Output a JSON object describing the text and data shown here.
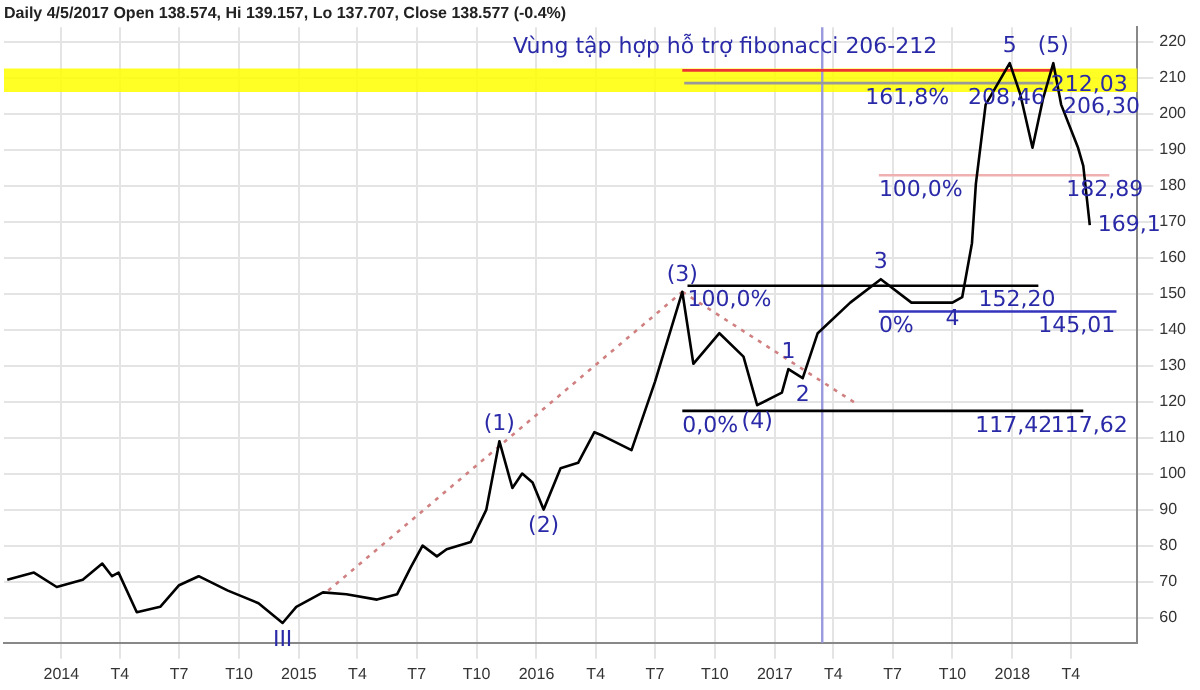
{
  "chart_data": {
    "type": "line",
    "title": "Daily 4/5/2017 Open 138.574, Hi 139.157, Lo 137.707, Close 138.577 (-0.4%)",
    "xlim": [
      "2013-10-05",
      "2018-07-12"
    ],
    "xticks": [
      {
        "value": "2014",
        "label": "2014"
      },
      {
        "value": "2014-04",
        "label": "T4"
      },
      {
        "value": "2014-07",
        "label": "T7"
      },
      {
        "value": "2014-10",
        "label": "T10"
      },
      {
        "value": "2015",
        "label": "2015"
      },
      {
        "value": "2015-04",
        "label": "T4"
      },
      {
        "value": "2015-07",
        "label": "T7"
      },
      {
        "value": "2015-10",
        "label": "T10"
      },
      {
        "value": "2016",
        "label": "2016"
      },
      {
        "value": "2016-04",
        "label": "T4"
      },
      {
        "value": "2016-07",
        "label": "T7"
      },
      {
        "value": "2016-10",
        "label": "T10"
      },
      {
        "value": "2017",
        "label": "2017"
      },
      {
        "value": "2017-04",
        "label": "T4"
      },
      {
        "value": "2017-07",
        "label": "T7"
      },
      {
        "value": "2017-10",
        "label": "T10"
      },
      {
        "value": "2018",
        "label": "2018"
      },
      {
        "value": "2018-04",
        "label": "T4"
      }
    ],
    "ylim": [
      53,
      224
    ],
    "yticks": [
      60,
      70,
      80,
      90,
      100,
      110,
      120,
      130,
      140,
      150,
      160,
      170,
      180,
      190,
      200,
      210,
      220
    ],
    "grid": true,
    "legend": false,
    "marker": "none",
    "series": [
      {
        "color": "#000000",
        "x": [
          "2013-10-10",
          "2013-11-20",
          "2013-12-25",
          "2014-02-03",
          "2014-03-05",
          "2014-03-20",
          "2014-03-30",
          "2014-04-27",
          "2014-06-02",
          "2014-07-01",
          "2014-07-31",
          "2014-09-14",
          "2014-10-31",
          "2014-12-07",
          "2014-12-28",
          "2015-02-07",
          "2015-03-15",
          "2015-05-01",
          "2015-06-01",
          "2015-06-22",
          "2015-07-10",
          "2015-08-01",
          "2015-08-16",
          "2015-09-22",
          "2015-10-16",
          "2015-11-05",
          "2015-11-25",
          "2015-12-10",
          "2015-12-26",
          "2016-01-12",
          "2016-02-07",
          "2016-03-05",
          "2016-03-30",
          "2016-04-12",
          "2016-05-26",
          "2016-07-01",
          "2016-08-12",
          "2016-08-29",
          "2016-10-08",
          "2016-11-14",
          "2016-12-05",
          "2017-01-12",
          "2017-01-22",
          "2017-02-13",
          "2017-03-08",
          "2017-04-27",
          "2017-06-13",
          "2017-07-30",
          "2017-10-01",
          "2017-10-16",
          "2017-10-31",
          "2017-11-06",
          "2017-11-21",
          "2017-12-28",
          "2018-01-13",
          "2018-02-01",
          "2018-02-17",
          "2018-03-05",
          "2018-03-17",
          "2018-04-12",
          "2018-04-20",
          "2018-04-30"
        ],
        "values": [
          70.5,
          72.5,
          68.5,
          70.5,
          75,
          71.5,
          72.5,
          61.5,
          63,
          69,
          71.5,
          67.5,
          64,
          58.5,
          63,
          67,
          66.5,
          65,
          66.5,
          74,
          80,
          77,
          79,
          81,
          90,
          109,
          96,
          100,
          97.5,
          90,
          101.5,
          103,
          111.5,
          110.5,
          106.5,
          125.5,
          150.5,
          130.5,
          139,
          132.5,
          119,
          122.5,
          129,
          126.5,
          139,
          147.5,
          154,
          147.5,
          147.5,
          149,
          164,
          180.5,
          202.5,
          214,
          205.5,
          190.5,
          204,
          214,
          202.5,
          190.5,
          185.5,
          169
        ]
      },
      {
        "color": "#000000",
        "x": [
          "2016-08-20",
          "2018-02-10"
        ],
        "values": [
          152.2,
          152.2
        ]
      },
      {
        "color": "#3333bb",
        "x": [
          "2017-06-10",
          "2018-06-10"
        ],
        "values": [
          145.01,
          145.01
        ]
      },
      {
        "color": "#000000",
        "x": [
          "2016-08-12",
          "2018-04-20"
        ],
        "values": [
          117.42,
          117.42
        ]
      },
      {
        "color": "#ee3333",
        "x": [
          "2016-08-12",
          "2018-03-05"
        ],
        "values": [
          212,
          212
        ]
      },
      {
        "color": "#999999",
        "x": [
          "2016-08-15",
          "2018-03-05"
        ],
        "values": [
          208.46,
          208.46
        ]
      },
      {
        "color": "#f0b0b0",
        "x": [
          "2017-06-10",
          "2018-05-30"
        ],
        "values": [
          182.89,
          182.89
        ]
      },
      {
        "color": "#d08080",
        "line_style": "dotted",
        "x": [
          "2015-02-15",
          "2016-08-12"
        ],
        "values": [
          67.5,
          150.5
        ]
      },
      {
        "color": "#d08080",
        "line_style": "dotted",
        "x": [
          "2016-08-12",
          "2017-05-10"
        ],
        "values": [
          150.5,
          119
        ]
      }
    ],
    "ref_lines": [
      {
        "axis": "x",
        "value": "2017-03-15",
        "color": "#9999dd"
      }
    ],
    "bands": [
      {
        "axis": "y",
        "from": 206,
        "to": 212.5,
        "color": "#ffff00"
      }
    ],
    "annotations": [
      "Vùng tập hợp hỗ trợ fibonacci 206-212",
      {
        "text": "(1)",
        "x": "2015-11-05",
        "y": 109
      },
      {
        "text": "(2)",
        "x": "2016-01-12",
        "y": 90
      },
      {
        "text": "(3)",
        "x": "2016-08-12",
        "y": 150.5
      },
      {
        "text": "(4)",
        "x": "2016-12-05",
        "y": 119
      },
      {
        "text": "(5)",
        "x": "2018-03-05",
        "y": 214
      },
      {
        "text": "III",
        "x": "2014-12-07",
        "y": 58.5
      },
      {
        "text": "1",
        "x": "2017-01-22",
        "y": 129
      },
      {
        "text": "2",
        "x": "2017-02-13",
        "y": 126.5
      },
      {
        "text": "3",
        "x": "2017-06-13",
        "y": 154
      },
      {
        "text": "4",
        "x": "2017-10-01",
        "y": 147.5
      },
      {
        "text": "5",
        "x": "2017-12-28",
        "y": 214
      },
      {
        "text": "100,0%",
        "x": "2016-08-20",
        "y": 152.2
      },
      {
        "text": "0,0%",
        "x": "2016-08-12",
        "y": 117.42
      },
      {
        "text": "152,20",
        "x": "2017-11-10",
        "y": 152.2
      },
      {
        "text": "0%",
        "x": "2017-06-10",
        "y": 145.01
      },
      {
        "text": "145,01",
        "x": "2018-02-10",
        "y": 145.01
      },
      {
        "text": "117,42",
        "x": "2017-11-05",
        "y": 117.42
      },
      {
        "text": "117,62",
        "x": "2018-03-01",
        "y": 117.42
      },
      {
        "text": "161,8%",
        "x": "2017-05-20",
        "y": 208.46
      },
      {
        "text": "208,46",
        "x": "2017-10-25",
        "y": 208.46
      },
      {
        "text": "212,03",
        "x": "2018-03-01",
        "y": 212
      },
      {
        "text": "206,30",
        "x": "2018-03-20",
        "y": 206
      },
      {
        "text": "100,0%",
        "x": "2017-06-10",
        "y": 182.89
      },
      {
        "text": "182,89",
        "x": "2018-03-25",
        "y": 182.89
      },
      {
        "text": "169,1",
        "x": "2018-04-30",
        "y": 169
      }
    ]
  }
}
